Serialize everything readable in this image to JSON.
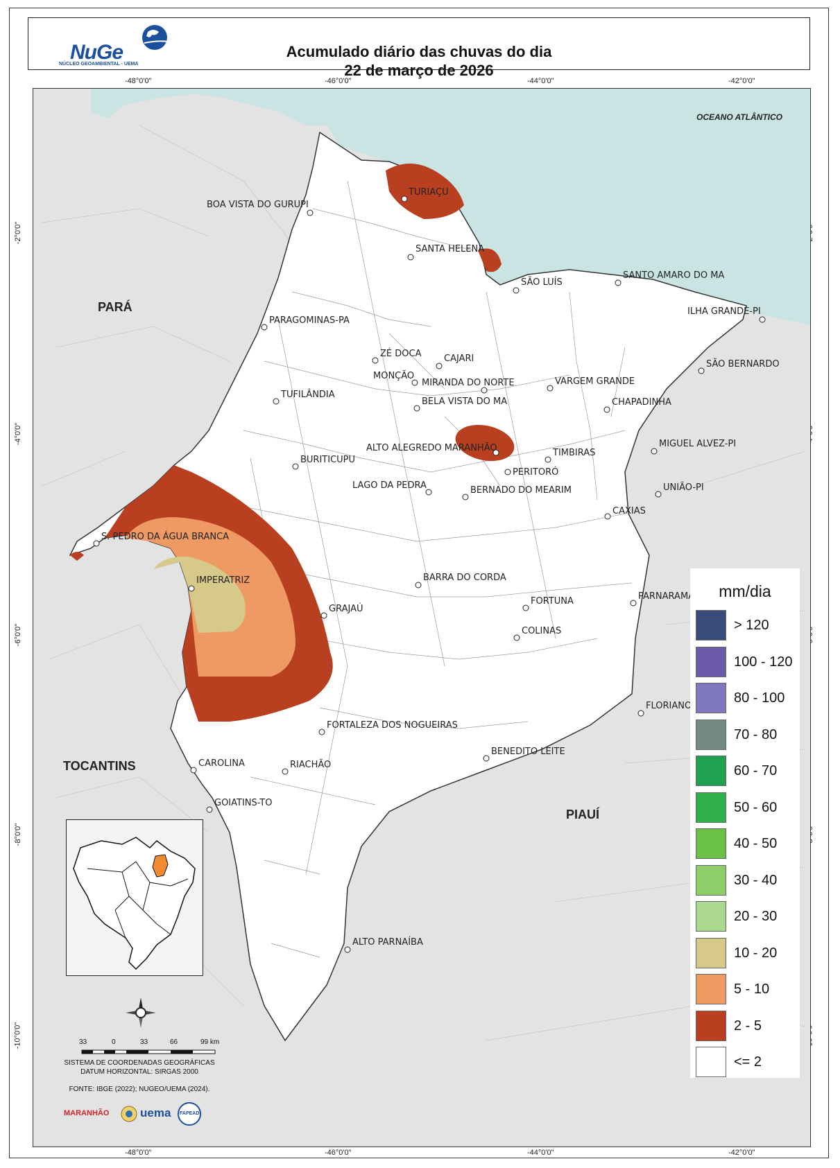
{
  "header": {
    "title_line1": "Acumulado diário das chuvas do dia",
    "title_line2": "22 de março de 2026",
    "logo_text": "NuGe",
    "logo_subtitle": "NÚCLEO GEOAMBIENTAL - UEMA"
  },
  "graticule": {
    "longitudes": [
      "-48°0'0\"",
      "-46°0'0\"",
      "-44°0'0\"",
      "-42°0'0\""
    ],
    "latitudes": [
      "-2°0'0\"",
      "-4°0'0\"",
      "-6°0'0\"",
      "-8°0'0\"",
      "-10°0'0\""
    ]
  },
  "map": {
    "ocean_label": "OCEANO ATLÂNTICO",
    "states": {
      "para": "PARÁ",
      "tocantins": "TOCANTINS",
      "piaui": "PIAUÍ"
    },
    "cities": [
      "TURIAÇU",
      "BOA VISTA DO GURUPI",
      "SANTA HELENA",
      "SÃO LUÍS",
      "SANTO AMARO DO MA",
      "ILHA GRANDE-PI",
      "PARAGOMINAS-PA",
      "ZÉ DOCA",
      "CAJARI",
      "SÃO BERNARDO",
      "MONÇÃO",
      "MIRANDA DO NORTE",
      "VARGEM GRANDE",
      "TUFILÂNDIA",
      "BELA VISTA DO MA",
      "CHAPADINHA",
      "MIGUEL ALVEZ-PI",
      "ALTO ALEGREDO MARANHÃO",
      "TIMBIRAS",
      "BURITICUPU",
      "PERITORÓ",
      "LAGO DA PEDRA",
      "BERNADO DO MEARIM",
      "UNIÃO-PI",
      "CAXIAS",
      "S. PEDRO DA ÁGUA BRANCA",
      "IMPERATRIZ",
      "BARRA DO CORDA",
      "FORTUNA",
      "PARNARAMA",
      "GRAJAÚ",
      "COLINAS",
      "FLORIANO",
      "FORTALEZA DOS NOGUEIRAS",
      "BENEDITO LEITE",
      "CAROLINA",
      "RIACHÃO",
      "GOIATINS-TO",
      "ALTO PARNAÍBA"
    ]
  },
  "legend": {
    "title": "mm/dia",
    "items": [
      {
        "label": "> 120",
        "color": "#3a4a7a"
      },
      {
        "label": "100 - 120",
        "color": "#6b5ba8"
      },
      {
        "label": "80 - 100",
        "color": "#8079c0"
      },
      {
        "label": "70 - 80",
        "color": "#738b82"
      },
      {
        "label": "60 - 70",
        "color": "#22a052"
      },
      {
        "label": "50 - 60",
        "color": "#2fb04a"
      },
      {
        "label": "40 - 50",
        "color": "#6bc048"
      },
      {
        "label": "30 - 40",
        "color": "#8fcd68"
      },
      {
        "label": "20 - 30",
        "color": "#a9d88e"
      },
      {
        "label": "10 - 20",
        "color": "#d7c98a"
      },
      {
        "label": "5 - 10",
        "color": "#ef9a65"
      },
      {
        "label": "2 - 5",
        "color": "#b84020"
      },
      {
        "label": "<= 2",
        "color": "#ffffff"
      }
    ]
  },
  "scale": {
    "labels": [
      "33",
      "0",
      "33",
      "66",
      "99 km"
    ]
  },
  "notes": {
    "crs_line1": "SISTEMA DE COORDENADAS GEOGRÁFICAS",
    "crs_line2": "DATUM HORIZONTAL: SIRGAS 2000",
    "source": "FONTE: IBGE (2022); NUGEO/UEMA (2024)."
  },
  "logos": {
    "maranhao": "MARANHÃO",
    "uema": "uema",
    "fapead": "FAPEAD"
  }
}
